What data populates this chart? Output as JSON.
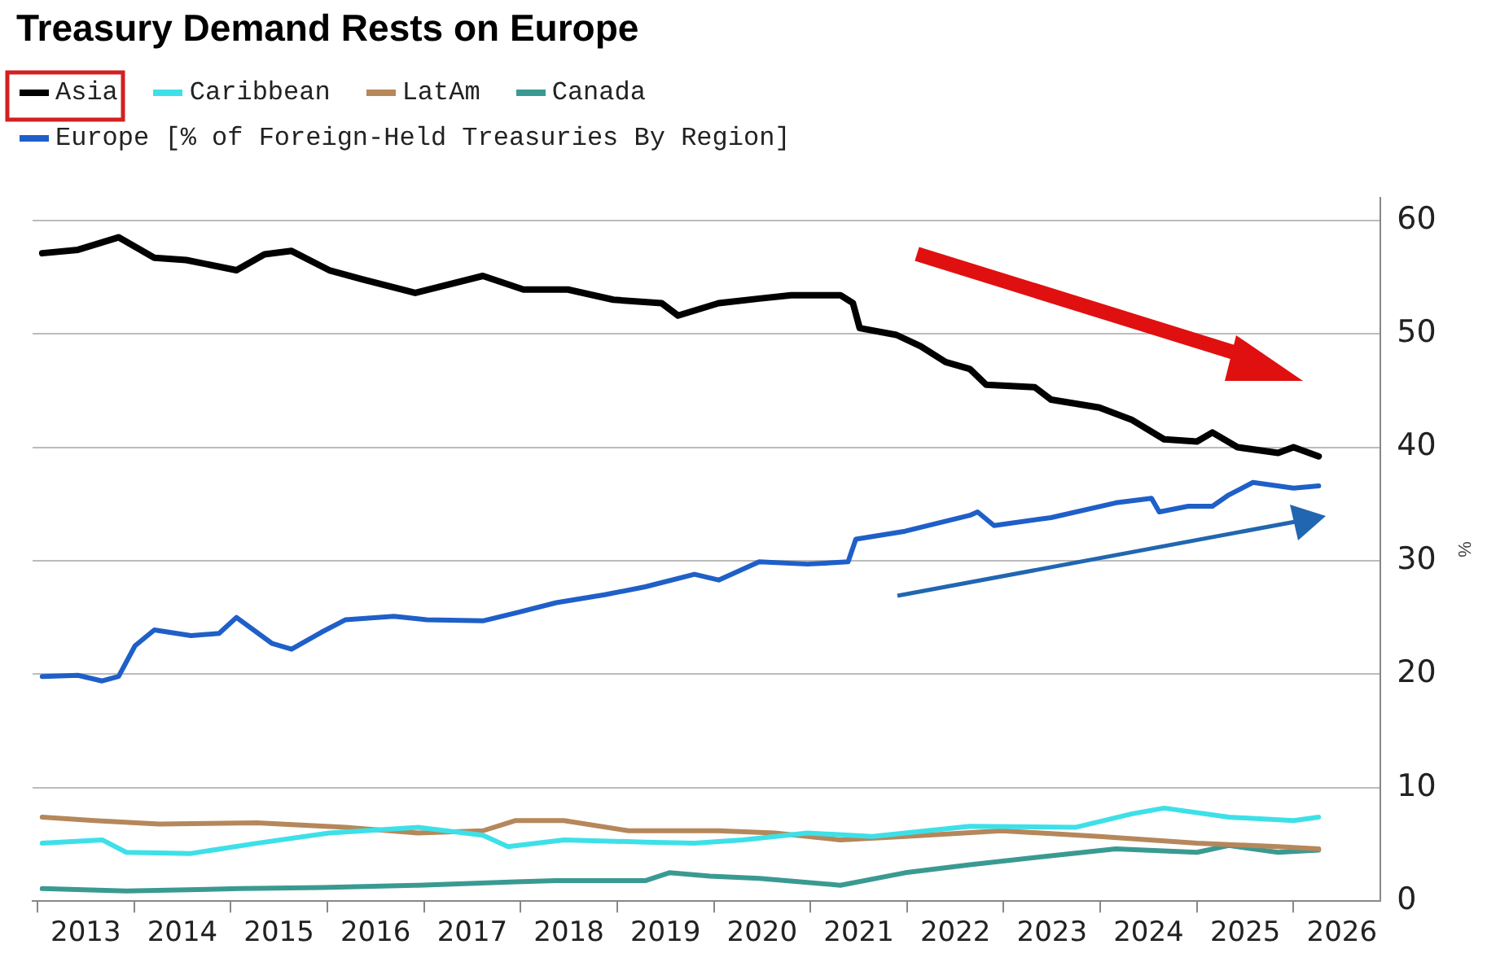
{
  "chart_data": {
    "type": "line",
    "title": "Treasury Demand Rests on Europe",
    "ylabel": "%",
    "legend": "top left",
    "grid": "y",
    "marker": "none",
    "line_style": "solid",
    "xlim": [
      2012.95,
      2026.9
    ],
    "xticks": [
      {
        "value": 2013,
        "label": null
      },
      {
        "value": 2013.5,
        "label": "2013"
      },
      {
        "value": 2014,
        "label": null
      },
      {
        "value": 2014.5,
        "label": "2014"
      },
      {
        "value": 2015,
        "label": null
      },
      {
        "value": 2015.5,
        "label": "2015"
      },
      {
        "value": 2016,
        "label": null
      },
      {
        "value": 2016.5,
        "label": "2016"
      },
      {
        "value": 2017,
        "label": null
      },
      {
        "value": 2017.5,
        "label": "2017"
      },
      {
        "value": 2018,
        "label": null
      },
      {
        "value": 2018.5,
        "label": "2018"
      },
      {
        "value": 2019,
        "label": null
      },
      {
        "value": 2019.5,
        "label": "2019"
      },
      {
        "value": 2020,
        "label": null
      },
      {
        "value": 2020.5,
        "label": "2020"
      },
      {
        "value": 2021,
        "label": null
      },
      {
        "value": 2021.5,
        "label": "2021"
      },
      {
        "value": 2022,
        "label": null
      },
      {
        "value": 2022.5,
        "label": "2022"
      },
      {
        "value": 2023,
        "label": null
      },
      {
        "value": 2023.5,
        "label": "2023"
      },
      {
        "value": 2024,
        "label": null
      },
      {
        "value": 2024.5,
        "label": "2024"
      },
      {
        "value": 2025,
        "label": null
      },
      {
        "value": 2025.5,
        "label": "2025"
      },
      {
        "value": 2026,
        "label": null
      },
      {
        "value": 2026.5,
        "label": "2026"
      }
    ],
    "ylim": [
      0,
      62
    ],
    "yticks": [
      0,
      10,
      20,
      30,
      40,
      50,
      60
    ],
    "series": [
      {
        "name": "Asia",
        "color": "#000000",
        "x": [
          2013.05,
          2013.42,
          2013.84,
          2014.21,
          2014.54,
          2015.06,
          2015.35,
          2015.63,
          2016.02,
          2016.36,
          2016.91,
          2017.61,
          2018.03,
          2018.49,
          2018.96,
          2019.46,
          2019.63,
          2020.05,
          2020.47,
          2020.8,
          2021.31,
          2021.44,
          2021.51,
          2021.89,
          2022.14,
          2022.4,
          2022.65,
          2022.82,
          2023.32,
          2023.49,
          2023.99,
          2024.33,
          2024.66,
          2025.0,
          2025.16,
          2025.42,
          2025.84,
          2026.0,
          2026.26
        ],
        "values": [
          57.1,
          57.4,
          58.5,
          56.7,
          56.5,
          55.6,
          57,
          57.3,
          55.6,
          54.8,
          53.6,
          55.1,
          53.9,
          53.9,
          53,
          52.7,
          51.6,
          52.7,
          53.1,
          53.4,
          53.4,
          52.7,
          50.5,
          49.9,
          48.9,
          47.5,
          46.9,
          45.5,
          45.3,
          44.2,
          43.5,
          42.4,
          40.7,
          40.5,
          41.3,
          40,
          39.5,
          40,
          39.2
        ]
      },
      {
        "name": "Caribbean",
        "color": "#3ee0e8",
        "x": [
          2013.05,
          2013.67,
          2013.92,
          2014.59,
          2015.27,
          2016.02,
          2016.94,
          2017.61,
          2017.87,
          2018.45,
          2019.29,
          2019.8,
          2020.3,
          2020.97,
          2021.64,
          2022.65,
          2023.74,
          2024.33,
          2024.66,
          2025.33,
          2026.0,
          2026.26
        ],
        "values": [
          5.1,
          5.4,
          4.3,
          4.2,
          5.1,
          6,
          6.5,
          5.8,
          4.8,
          5.4,
          5.2,
          5.1,
          5.4,
          6,
          5.7,
          6.6,
          6.5,
          7.7,
          8.2,
          7.4,
          7.1,
          7.4
        ]
      },
      {
        "name": "LatAm",
        "color": "#b5875a",
        "x": [
          2013.05,
          2013.59,
          2014.26,
          2015.27,
          2016.19,
          2016.94,
          2017.61,
          2017.95,
          2018.45,
          2019.12,
          2020.05,
          2020.63,
          2021.31,
          2021.98,
          2022.98,
          2023.99,
          2025.0,
          2025.84,
          2026.26
        ],
        "values": [
          7.4,
          7.1,
          6.8,
          6.9,
          6.5,
          6,
          6.2,
          7.1,
          7.1,
          6.2,
          6.2,
          6,
          5.4,
          5.7,
          6.2,
          5.7,
          5.1,
          4.8,
          4.6
        ]
      },
      {
        "name": "Canada",
        "color": "#3a9a92",
        "x": [
          2013.05,
          2013.92,
          2015.1,
          2015.94,
          2016.94,
          2017.95,
          2018.37,
          2019.29,
          2019.54,
          2019.96,
          2020.47,
          2021.31,
          2021.98,
          2022.65,
          2023.49,
          2024.16,
          2025.0,
          2025.33,
          2025.84,
          2026.26
        ],
        "values": [
          1.1,
          0.9,
          1.1,
          1.2,
          1.4,
          1.7,
          1.8,
          1.8,
          2.5,
          2.2,
          2,
          1.4,
          2.5,
          3.2,
          4,
          4.6,
          4.3,
          4.9,
          4.3,
          4.5
        ]
      },
      {
        "name": "Europe [% of Foreign-Held Treasuries By Region]",
        "color": "#1f5fc8",
        "x": [
          2013.05,
          2013.42,
          2013.67,
          2013.84,
          2014.01,
          2014.21,
          2014.59,
          2014.88,
          2015.06,
          2015.43,
          2015.63,
          2015.94,
          2016.19,
          2016.69,
          2017.03,
          2017.61,
          2017.95,
          2018.37,
          2018.87,
          2019.29,
          2019.8,
          2020.05,
          2020.47,
          2020.97,
          2021.39,
          2021.47,
          2021.98,
          2022.65,
          2022.73,
          2022.9,
          2023.49,
          2024.16,
          2024.53,
          2024.61,
          2024.91,
          2025.16,
          2025.33,
          2025.58,
          2026.0,
          2026.26
        ],
        "values": [
          19.8,
          19.9,
          19.4,
          19.8,
          22.5,
          23.9,
          23.4,
          23.6,
          25,
          22.7,
          22.2,
          23.7,
          24.8,
          25.1,
          24.8,
          24.7,
          25.4,
          26.3,
          27,
          27.7,
          28.8,
          28.3,
          29.9,
          29.7,
          29.9,
          31.9,
          32.6,
          34,
          34.3,
          33.1,
          33.8,
          35.1,
          35.5,
          34.3,
          34.8,
          34.8,
          35.8,
          36.9,
          36.4,
          36.6
        ]
      }
    ]
  }
}
